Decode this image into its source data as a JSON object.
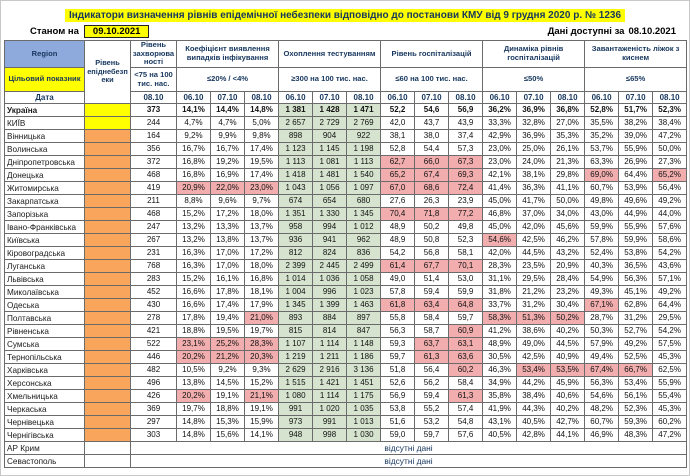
{
  "header": {
    "title": "Індикатори визначення рівнів епідемічної небезпеки відповідно до постанови КМУ від 9 грудня 2020 р. № 1236",
    "as_of_label": "Станом на",
    "as_of_date": "09.10.2021",
    "available_label": "Дані доступні за",
    "available_date": "08.10.2021"
  },
  "colors": {
    "accent_yellow": "#ffff00",
    "header_region_bg": "#8ea9db",
    "header_text_navy": "#17375e",
    "level_yellow": "#ffff00",
    "level_orange": "#f9a65c",
    "highlight_pink": "#f2aeae",
    "highlight_green": "#d6e4cf"
  },
  "table": {
    "col1": {
      "region": "Region",
      "target": "Цільовий показник",
      "date": "Дата"
    },
    "level_header": "Рівень епіднебезпеки",
    "groups": [
      {
        "key": "inc",
        "name": "Рівень захворюваності",
        "target": "<75 на 100 тис. нас.",
        "dates": [
          "08.10"
        ]
      },
      {
        "key": "coef",
        "name": "Коефіцієнт виявлення випадків інфікування",
        "target": "≤20% / <4%",
        "dates": [
          "06.10",
          "07.10",
          "08.10"
        ]
      },
      {
        "key": "tests",
        "name": "Охоплення тестуванням",
        "target": "≥300 на 100 тис. нас.",
        "dates": [
          "06.10",
          "07.10",
          "08.10"
        ]
      },
      {
        "key": "hosp",
        "name": "Рівень госпіталізацій",
        "target": "≤60 на 100 тис. нас.",
        "dates": [
          "06.10",
          "07.10",
          "08.10"
        ]
      },
      {
        "key": "dyn",
        "name": "Динаміка рівнів госпіталізацій",
        "target": "≤50%",
        "dates": [
          "06.10",
          "07.10",
          "08.10"
        ]
      },
      {
        "key": "beds",
        "name": "Завантаженість ліжок з киснем",
        "target": "≤65%",
        "dates": [
          "06.10",
          "07.10",
          "08.10"
        ]
      }
    ],
    "rows": [
      {
        "region": "Україна",
        "bold": true,
        "level": "yellow",
        "inc": "373",
        "coef": [
          "14,1%",
          "14,4%",
          "14,8%"
        ],
        "tests": [
          "1 381",
          "1 428",
          "1 471"
        ],
        "hosp": [
          "52,2",
          "54,6",
          "56,9"
        ],
        "dyn": [
          "36,2%",
          "36,9%",
          "36,8%"
        ],
        "beds": [
          "52,8%",
          "51,7%",
          "52,3%"
        ]
      },
      {
        "region": "КИЇВ",
        "level": "yellow",
        "inc": "244",
        "coef": [
          "4,7%",
          "4,7%",
          "5,0%"
        ],
        "tests": [
          "2 657",
          "2 729",
          "2 769"
        ],
        "hosp": [
          "42,0",
          "43,7",
          "43,9"
        ],
        "dyn": [
          "33,3%",
          "32,8%",
          "27,0%"
        ],
        "beds": [
          "35,5%",
          "38,2%",
          "38,4%"
        ]
      },
      {
        "region": "Вінницька",
        "level": "orange",
        "inc": "164",
        "coef": [
          "9,2%",
          "9,9%",
          "9,8%"
        ],
        "tests": [
          "898",
          "904",
          "922"
        ],
        "hosp": [
          "38,1",
          "38,0",
          "37,4"
        ],
        "dyn": [
          "42,9%",
          "36,9%",
          "35,3%"
        ],
        "beds": [
          "35,2%",
          "39,0%",
          "47,2%"
        ]
      },
      {
        "region": "Волинська",
        "level": "orange",
        "inc": "356",
        "coef": [
          "16,7%",
          "16,7%",
          "17,4%"
        ],
        "tests": [
          "1 123",
          "1 145",
          "1 198"
        ],
        "hosp": [
          "52,8",
          "54,4",
          "57,3"
        ],
        "dyn": [
          "23,0%",
          "25,0%",
          "26,1%"
        ],
        "beds": [
          "53,7%",
          "55,9%",
          "50,0%"
        ]
      },
      {
        "region": "Дніпропетровська",
        "level": "orange",
        "inc": "372",
        "coef": [
          "16,8%",
          "19,2%",
          "19,5%"
        ],
        "tests": [
          "1 113",
          "1 081",
          "1 113"
        ],
        "hosp": [
          "62,7",
          "66,0",
          "67,3"
        ],
        "dyn": [
          "23,0%",
          "24,0%",
          "21,3%"
        ],
        "beds": [
          "63,3%",
          "26,9%",
          "27,3%"
        ],
        "hl": {
          "hosp": [
            0,
            1,
            2
          ]
        }
      },
      {
        "region": "Донецька",
        "level": "orange",
        "inc": "468",
        "coef": [
          "16,8%",
          "16,9%",
          "17,4%"
        ],
        "tests": [
          "1 418",
          "1 481",
          "1 540"
        ],
        "hosp": [
          "65,2",
          "67,4",
          "69,3"
        ],
        "dyn": [
          "42,1%",
          "38,1%",
          "29,8%"
        ],
        "beds": [
          "69,0%",
          "64,4%",
          "65,2%"
        ],
        "hl": {
          "hosp": [
            0,
            1,
            2
          ],
          "beds": [
            0,
            2
          ]
        }
      },
      {
        "region": "Житомирська",
        "level": "orange",
        "inc": "419",
        "coef": [
          "20,9%",
          "22,0%",
          "23,0%"
        ],
        "tests": [
          "1 043",
          "1 056",
          "1 097"
        ],
        "hosp": [
          "67,0",
          "68,6",
          "72,4"
        ],
        "dyn": [
          "41,4%",
          "36,3%",
          "41,1%"
        ],
        "beds": [
          "60,7%",
          "53,9%",
          "56,4%"
        ],
        "hl": {
          "coef": [
            0,
            1,
            2
          ],
          "hosp": [
            0,
            1,
            2
          ]
        }
      },
      {
        "region": "Закарпатська",
        "level": "orange",
        "inc": "211",
        "coef": [
          "8,8%",
          "9,6%",
          "9,7%"
        ],
        "tests": [
          "674",
          "654",
          "680"
        ],
        "hosp": [
          "27,6",
          "26,3",
          "23,9"
        ],
        "dyn": [
          "45,0%",
          "41,7%",
          "50,0%"
        ],
        "beds": [
          "49,8%",
          "49,6%",
          "49,2%"
        ]
      },
      {
        "region": "Запорізька",
        "level": "orange",
        "inc": "468",
        "coef": [
          "15,2%",
          "17,2%",
          "18,0%"
        ],
        "tests": [
          "1 351",
          "1 330",
          "1 345"
        ],
        "hosp": [
          "70,4",
          "71,8",
          "77,2"
        ],
        "dyn": [
          "46,8%",
          "37,0%",
          "34,0%"
        ],
        "beds": [
          "43,0%",
          "44,9%",
          "44,0%"
        ],
        "hl": {
          "hosp": [
            0,
            1,
            2
          ]
        }
      },
      {
        "region": "Івано-Франківська",
        "level": "orange",
        "inc": "247",
        "coef": [
          "13,2%",
          "13,3%",
          "13,7%"
        ],
        "tests": [
          "958",
          "994",
          "1 012"
        ],
        "hosp": [
          "48,9",
          "50,2",
          "49,8"
        ],
        "dyn": [
          "45,0%",
          "42,0%",
          "45,6%"
        ],
        "beds": [
          "59,9%",
          "55,9%",
          "57,6%"
        ]
      },
      {
        "region": "Київська",
        "level": "orange",
        "inc": "267",
        "coef": [
          "13,2%",
          "13,8%",
          "13,7%"
        ],
        "tests": [
          "936",
          "941",
          "962"
        ],
        "hosp": [
          "48,9",
          "50,8",
          "52,3"
        ],
        "dyn": [
          "54,6%",
          "42,5%",
          "46,2%"
        ],
        "beds": [
          "57,8%",
          "59,9%",
          "58,6%"
        ],
        "hl": {
          "dyn": [
            0
          ]
        }
      },
      {
        "region": "Кіровоградська",
        "level": "orange",
        "inc": "231",
        "coef": [
          "16,3%",
          "17,0%",
          "17,2%"
        ],
        "tests": [
          "812",
          "824",
          "836"
        ],
        "hosp": [
          "54,2",
          "56,8",
          "58,1"
        ],
        "dyn": [
          "42,0%",
          "44,5%",
          "43,2%"
        ],
        "beds": [
          "52,4%",
          "53,8%",
          "54,2%"
        ]
      },
      {
        "region": "Луганська",
        "level": "orange",
        "inc": "768",
        "coef": [
          "16,3%",
          "17,0%",
          "18,0%"
        ],
        "tests": [
          "2 399",
          "2 445",
          "2 499"
        ],
        "hosp": [
          "61,4",
          "67,7",
          "70,1"
        ],
        "dyn": [
          "28,3%",
          "23,5%",
          "20,9%"
        ],
        "beds": [
          "40,3%",
          "36,5%",
          "43,6%"
        ],
        "hl": {
          "hosp": [
            0,
            1,
            2
          ]
        }
      },
      {
        "region": "Львівська",
        "level": "orange",
        "inc": "283",
        "coef": [
          "15,2%",
          "16,1%",
          "16,8%"
        ],
        "tests": [
          "1 014",
          "1 036",
          "1 058"
        ],
        "hosp": [
          "49,0",
          "51,4",
          "53,0"
        ],
        "dyn": [
          "31,1%",
          "29,5%",
          "28,4%"
        ],
        "beds": [
          "54,9%",
          "56,3%",
          "57,1%"
        ]
      },
      {
        "region": "Миколаївська",
        "level": "orange",
        "inc": "452",
        "coef": [
          "16,6%",
          "17,8%",
          "18,1%"
        ],
        "tests": [
          "1 004",
          "996",
          "1 023"
        ],
        "hosp": [
          "57,8",
          "59,4",
          "59,9"
        ],
        "dyn": [
          "31,8%",
          "21,2%",
          "23,2%"
        ],
        "beds": [
          "49,3%",
          "45,1%",
          "49,2%"
        ]
      },
      {
        "region": "Одеська",
        "level": "orange",
        "inc": "430",
        "coef": [
          "16,6%",
          "17,4%",
          "17,9%"
        ],
        "tests": [
          "1 345",
          "1 399",
          "1 463"
        ],
        "hosp": [
          "61,8",
          "63,4",
          "64,8"
        ],
        "dyn": [
          "33,7%",
          "31,2%",
          "30,4%"
        ],
        "beds": [
          "67,1%",
          "62,8%",
          "64,4%"
        ],
        "hl": {
          "hosp": [
            0,
            1,
            2
          ],
          "beds": [
            0
          ]
        }
      },
      {
        "region": "Полтавська",
        "level": "orange",
        "inc": "278",
        "coef": [
          "17,8%",
          "19,4%",
          "21,0%"
        ],
        "tests": [
          "893",
          "884",
          "897"
        ],
        "hosp": [
          "55,8",
          "58,4",
          "59,7"
        ],
        "dyn": [
          "58,3%",
          "51,3%",
          "50,2%"
        ],
        "beds": [
          "28,7%",
          "31,2%",
          "29,5%"
        ],
        "hl": {
          "coef": [
            2
          ],
          "dyn": [
            0,
            1,
            2
          ]
        }
      },
      {
        "region": "Рівненська",
        "level": "orange",
        "inc": "421",
        "coef": [
          "18,8%",
          "19,5%",
          "19,7%"
        ],
        "tests": [
          "815",
          "814",
          "847"
        ],
        "hosp": [
          "56,3",
          "58,7",
          "60,9"
        ],
        "dyn": [
          "41,2%",
          "38,6%",
          "40,2%"
        ],
        "beds": [
          "50,3%",
          "52,7%",
          "54,2%"
        ],
        "hl": {
          "hosp": [
            2
          ]
        }
      },
      {
        "region": "Сумська",
        "level": "orange",
        "inc": "522",
        "coef": [
          "23,1%",
          "25,2%",
          "28,3%"
        ],
        "tests": [
          "1 107",
          "1 114",
          "1 148"
        ],
        "hosp": [
          "59,3",
          "63,7",
          "63,1"
        ],
        "dyn": [
          "48,9%",
          "49,0%",
          "44,5%"
        ],
        "beds": [
          "57,9%",
          "49,2%",
          "57,5%"
        ],
        "hl": {
          "coef": [
            0,
            1,
            2
          ],
          "hosp": [
            1,
            2
          ]
        }
      },
      {
        "region": "Тернопільська",
        "level": "orange",
        "inc": "446",
        "coef": [
          "20,2%",
          "21,2%",
          "20,3%"
        ],
        "tests": [
          "1 219",
          "1 211",
          "1 186"
        ],
        "hosp": [
          "59,7",
          "61,3",
          "63,6"
        ],
        "dyn": [
          "30,5%",
          "42,5%",
          "40,9%"
        ],
        "beds": [
          "49,4%",
          "52,5%",
          "45,3%"
        ],
        "hl": {
          "coef": [
            0,
            1,
            2
          ],
          "hosp": [
            1,
            2
          ]
        }
      },
      {
        "region": "Харківська",
        "level": "orange",
        "inc": "482",
        "coef": [
          "10,5%",
          "9,2%",
          "9,3%"
        ],
        "tests": [
          "2 629",
          "2 916",
          "3 136"
        ],
        "hosp": [
          "51,8",
          "56,4",
          "60,2"
        ],
        "dyn": [
          "46,3%",
          "53,4%",
          "53,5%"
        ],
        "beds": [
          "67,4%",
          "66,7%",
          "62,5%"
        ],
        "hl": {
          "hosp": [
            2
          ],
          "dyn": [
            1,
            2
          ],
          "beds": [
            0,
            1
          ]
        }
      },
      {
        "region": "Херсонська",
        "level": "orange",
        "inc": "496",
        "coef": [
          "13,8%",
          "14,5%",
          "15,2%"
        ],
        "tests": [
          "1 515",
          "1 421",
          "1 451"
        ],
        "hosp": [
          "52,6",
          "56,2",
          "58,4"
        ],
        "dyn": [
          "34,9%",
          "44,2%",
          "45,9%"
        ],
        "beds": [
          "56,3%",
          "53,4%",
          "55,9%"
        ]
      },
      {
        "region": "Хмельницька",
        "level": "orange",
        "inc": "426",
        "coef": [
          "20,2%",
          "19,1%",
          "21,1%"
        ],
        "tests": [
          "1 080",
          "1 114",
          "1 175"
        ],
        "hosp": [
          "56,9",
          "59,4",
          "61,3"
        ],
        "dyn": [
          "35,8%",
          "38,4%",
          "40,6%"
        ],
        "beds": [
          "54,6%",
          "56,1%",
          "55,4%"
        ],
        "hl": {
          "coef": [
            0,
            2
          ],
          "hosp": [
            2
          ]
        }
      },
      {
        "region": "Черкаська",
        "level": "orange",
        "inc": "369",
        "coef": [
          "19,7%",
          "18,8%",
          "19,1%"
        ],
        "tests": [
          "991",
          "1 020",
          "1 035"
        ],
        "hosp": [
          "53,8",
          "55,2",
          "57,4"
        ],
        "dyn": [
          "41,9%",
          "44,3%",
          "40,2%"
        ],
        "beds": [
          "48,2%",
          "52,3%",
          "45,3%"
        ]
      },
      {
        "region": "Чернівецька",
        "level": "orange",
        "inc": "297",
        "coef": [
          "14,8%",
          "15,3%",
          "15,9%"
        ],
        "tests": [
          "973",
          "991",
          "1 013"
        ],
        "hosp": [
          "51,6",
          "53,2",
          "54,8"
        ],
        "dyn": [
          "43,1%",
          "40,5%",
          "42,7%"
        ],
        "beds": [
          "60,7%",
          "59,3%",
          "60,2%"
        ]
      },
      {
        "region": "Чернігівська",
        "level": "orange",
        "inc": "303",
        "coef": [
          "14,8%",
          "15,6%",
          "14,1%"
        ],
        "tests": [
          "948",
          "998",
          "1 030"
        ],
        "hosp": [
          "59,0",
          "59,7",
          "57,6"
        ],
        "dyn": [
          "40,5%",
          "42,8%",
          "44,1%"
        ],
        "beds": [
          "46,9%",
          "48,3%",
          "47,2%"
        ]
      }
    ],
    "absent_rows": [
      {
        "region": "АР Крим",
        "note": "відсутні дані"
      },
      {
        "region": "Севастополь",
        "note": "відсутні дані"
      }
    ]
  }
}
